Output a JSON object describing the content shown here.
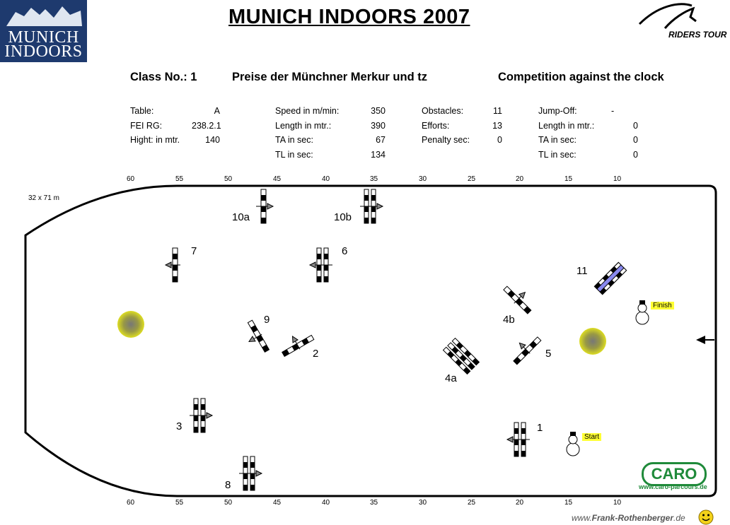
{
  "logo": {
    "line1": "MUNICH",
    "line2": "INDOORS"
  },
  "title": "MUNICH  INDOORS  2007",
  "sponsor_logo": "RIDERS TOUR",
  "header": {
    "class_no": "Class No.: 1",
    "class_name": "Preise der Münchner Merkur und tz",
    "competition": "Competition against the clock"
  },
  "info": {
    "col1": [
      {
        "label": "Table:",
        "value": "A"
      },
      {
        "label": "FEI RG:",
        "value": "238.2.1"
      },
      {
        "label": "Hight: in mtr.",
        "value": "140"
      }
    ],
    "col2": [
      {
        "label": "Speed in m/min:",
        "value": "350"
      },
      {
        "label": "Length in mtr.:",
        "value": "390"
      },
      {
        "label": "TA in sec:",
        "value": "67"
      },
      {
        "label": "TL in sec:",
        "value": "134"
      }
    ],
    "col3": [
      {
        "label": "Obstacles:",
        "value": "11"
      },
      {
        "label": "Efforts:",
        "value": "13"
      },
      {
        "label": "Penalty sec:",
        "value": "0"
      }
    ],
    "col4": [
      {
        "label": "Jump-Off:",
        "value": "-"
      },
      {
        "label": "Length in mtr.:",
        "value": "0"
      },
      {
        "label": "TA in sec:",
        "value": "0"
      },
      {
        "label": "TL in sec:",
        "value": "0"
      }
    ]
  },
  "arena": {
    "dimensions": "32 x 71 m",
    "scale_top": [
      "60",
      "55",
      "50",
      "45",
      "40",
      "35",
      "30",
      "25",
      "20",
      "15",
      "10"
    ],
    "scale_bottom": [
      "60",
      "55",
      "50",
      "45",
      "40",
      "35",
      "30",
      "25",
      "20",
      "15",
      "10"
    ],
    "start_label": "Start",
    "finish_label": "Finish"
  },
  "fences": [
    {
      "label": "1",
      "type": "oxer"
    },
    {
      "label": "2",
      "type": "vertical"
    },
    {
      "label": "3",
      "type": "oxer"
    },
    {
      "label": "4a",
      "type": "triple-bar"
    },
    {
      "label": "4b",
      "type": "vertical"
    },
    {
      "label": "5",
      "type": "vertical"
    },
    {
      "label": "6",
      "type": "oxer"
    },
    {
      "label": "7",
      "type": "vertical"
    },
    {
      "label": "8",
      "type": "oxer"
    },
    {
      "label": "9",
      "type": "vertical"
    },
    {
      "label": "10a",
      "type": "vertical"
    },
    {
      "label": "10b",
      "type": "oxer"
    },
    {
      "label": "11",
      "type": "water-oxer"
    }
  ],
  "caro": {
    "logo": "CARO",
    "url": "www.caro-parcours.de"
  },
  "credit": {
    "prefix": "www.",
    "name": "Frank-Rothenberger",
    "suffix": ".de"
  },
  "colors": {
    "logo_bg": "#1e3a6e",
    "bush": "#cccc22",
    "water": "#8888ee",
    "caro_green": "#1f8a3a",
    "tag_yellow": "#ffff33"
  }
}
